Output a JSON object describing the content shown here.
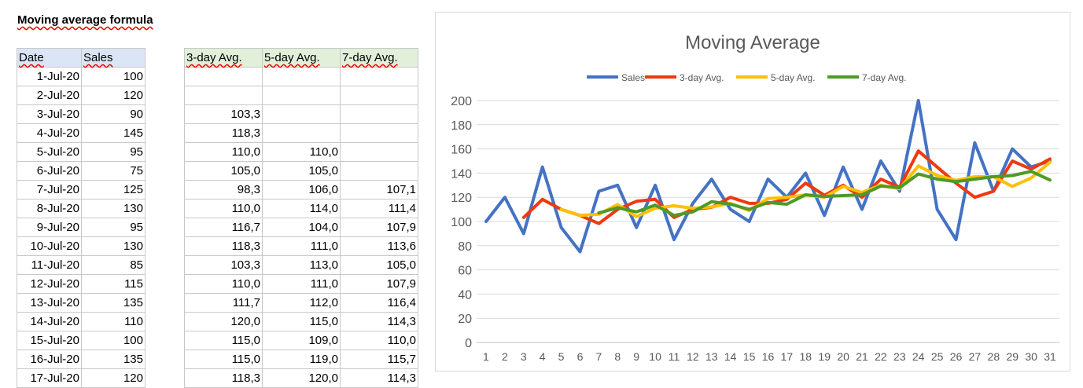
{
  "sheet": {
    "title": "Moving average formula",
    "left_headers": [
      "Date",
      "Sales"
    ],
    "right_headers": [
      "3-day Avg.",
      "5-day Avg.",
      "7-day Avg."
    ],
    "rows": [
      {
        "date": "1-Jul-20",
        "sales": "100",
        "avg3": "",
        "avg5": "",
        "avg7": ""
      },
      {
        "date": "2-Jul-20",
        "sales": "120",
        "avg3": "",
        "avg5": "",
        "avg7": ""
      },
      {
        "date": "3-Jul-20",
        "sales": "90",
        "avg3": "103,3",
        "avg5": "",
        "avg7": ""
      },
      {
        "date": "4-Jul-20",
        "sales": "145",
        "avg3": "118,3",
        "avg5": "",
        "avg7": ""
      },
      {
        "date": "5-Jul-20",
        "sales": "95",
        "avg3": "110,0",
        "avg5": "110,0",
        "avg7": ""
      },
      {
        "date": "6-Jul-20",
        "sales": "75",
        "avg3": "105,0",
        "avg5": "105,0",
        "avg7": ""
      },
      {
        "date": "7-Jul-20",
        "sales": "125",
        "avg3": "98,3",
        "avg5": "106,0",
        "avg7": "107,1"
      },
      {
        "date": "8-Jul-20",
        "sales": "130",
        "avg3": "110,0",
        "avg5": "114,0",
        "avg7": "111,4"
      },
      {
        "date": "9-Jul-20",
        "sales": "95",
        "avg3": "116,7",
        "avg5": "104,0",
        "avg7": "107,9"
      },
      {
        "date": "10-Jul-20",
        "sales": "130",
        "avg3": "118,3",
        "avg5": "111,0",
        "avg7": "113,6"
      },
      {
        "date": "11-Jul-20",
        "sales": "85",
        "avg3": "103,3",
        "avg5": "113,0",
        "avg7": "105,0"
      },
      {
        "date": "12-Jul-20",
        "sales": "115",
        "avg3": "110,0",
        "avg5": "111,0",
        "avg7": "107,9"
      },
      {
        "date": "13-Jul-20",
        "sales": "135",
        "avg3": "111,7",
        "avg5": "112,0",
        "avg7": "116,4"
      },
      {
        "date": "14-Jul-20",
        "sales": "110",
        "avg3": "120,0",
        "avg5": "115,0",
        "avg7": "114,3"
      },
      {
        "date": "15-Jul-20",
        "sales": "100",
        "avg3": "115,0",
        "avg5": "109,0",
        "avg7": "110,0"
      },
      {
        "date": "16-Jul-20",
        "sales": "135",
        "avg3": "115,0",
        "avg5": "119,0",
        "avg7": "115,7"
      },
      {
        "date": "17-Jul-20",
        "sales": "120",
        "avg3": "118,3",
        "avg5": "120,0",
        "avg7": "114,3"
      }
    ]
  },
  "chart_data": {
    "type": "line",
    "title": "Moving Average",
    "xlabel": "",
    "ylabel": "",
    "legend_position": "top",
    "grid": true,
    "ylim": [
      0,
      200
    ],
    "yticks": [
      0,
      20,
      40,
      60,
      80,
      100,
      120,
      140,
      160,
      180,
      200
    ],
    "x": [
      1,
      2,
      3,
      4,
      5,
      6,
      7,
      8,
      9,
      10,
      11,
      12,
      13,
      14,
      15,
      16,
      17,
      18,
      19,
      20,
      21,
      22,
      23,
      24,
      25,
      26,
      27,
      28,
      29,
      30,
      31
    ],
    "series": [
      {
        "name": "Sales",
        "color": "#4472c4",
        "values": [
          100,
          120,
          90,
          145,
          95,
          75,
          125,
          130,
          95,
          130,
          85,
          115,
          135,
          110,
          100,
          135,
          120,
          140,
          105,
          145,
          110,
          150,
          125,
          200,
          110,
          85,
          165,
          125,
          160,
          145,
          150
        ]
      },
      {
        "name": "3-day Avg.",
        "color": "#ed3a0f",
        "values": [
          null,
          null,
          103.3,
          118.3,
          110,
          105,
          98.3,
          110,
          116.7,
          118.3,
          103.3,
          110,
          111.7,
          120,
          115,
          115,
          118.3,
          131.7,
          121.7,
          130,
          120,
          135,
          128.3,
          158.3,
          145,
          131.7,
          120,
          125,
          150,
          143.3,
          151.7
        ]
      },
      {
        "name": "5-day Avg.",
        "color": "#ffc000",
        "values": [
          null,
          null,
          null,
          null,
          110,
          105,
          106,
          114,
          104,
          111,
          113,
          111,
          112,
          115,
          109,
          119,
          120,
          122,
          120,
          129,
          124,
          130,
          127,
          146,
          138,
          134,
          137,
          137,
          129,
          136,
          149
        ]
      },
      {
        "name": "7-day Avg.",
        "color": "#4e9a27",
        "values": [
          null,
          null,
          null,
          null,
          null,
          null,
          107.1,
          111.4,
          107.9,
          113.6,
          105,
          107.9,
          116.4,
          114.3,
          110,
          115.7,
          114.3,
          122.1,
          120.7,
          121.4,
          122.1,
          129.3,
          127.9,
          139.3,
          135,
          132.9,
          135,
          137.1,
          138,
          141.4,
          134.3
        ]
      }
    ]
  }
}
